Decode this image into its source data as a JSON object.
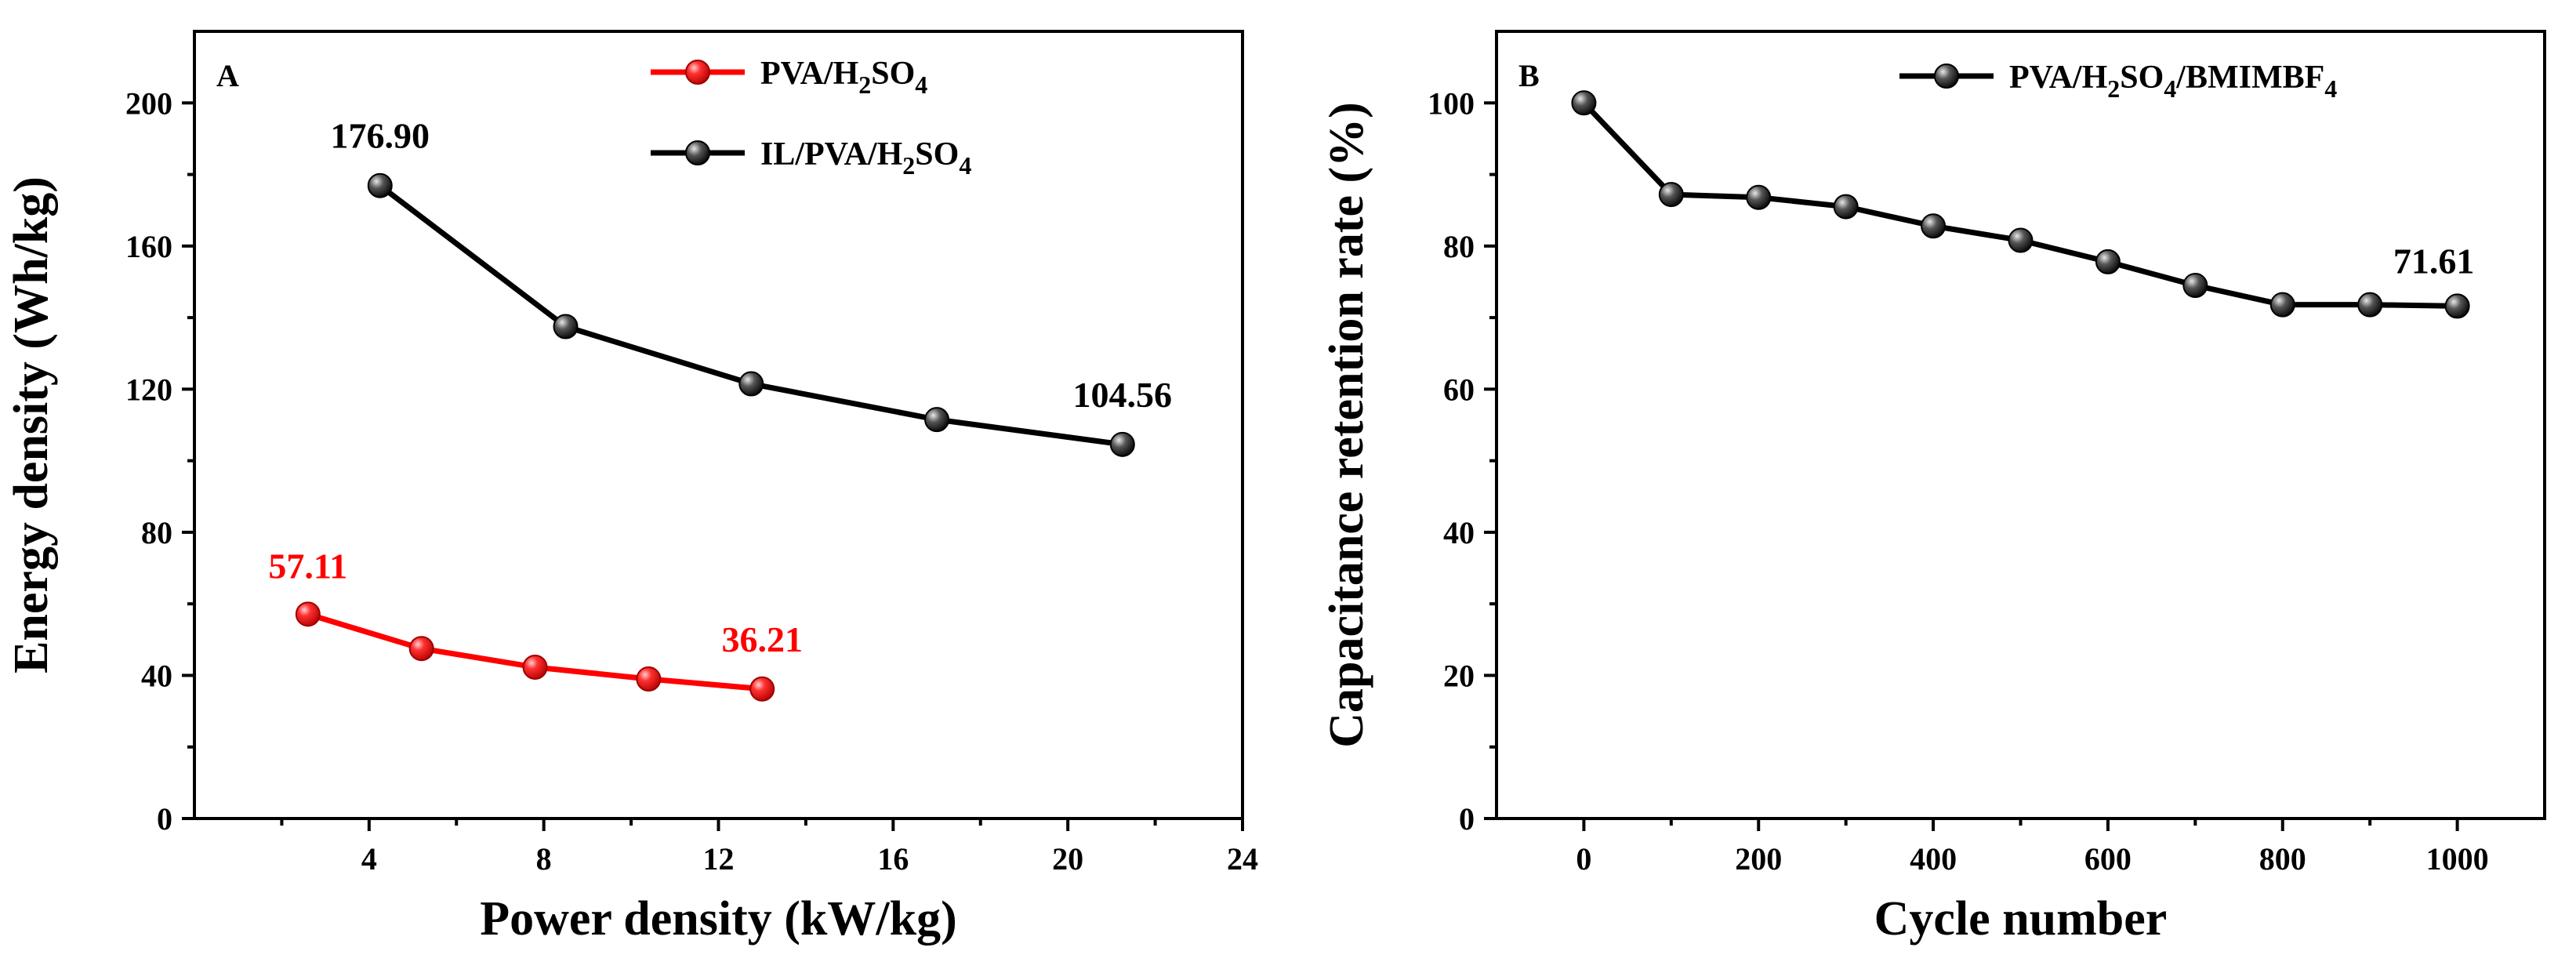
{
  "chart_data": [
    {
      "type": "line",
      "panel": "A",
      "xlabel": "Power density (kW/kg)",
      "ylabel": "Energy density (Wh/kg)",
      "xlim": [
        0,
        24
      ],
      "ylim": [
        0,
        220
      ],
      "xticks": [
        4,
        8,
        12,
        16,
        20,
        24
      ],
      "yticks": [
        0,
        40,
        80,
        120,
        160,
        200
      ],
      "grid": false,
      "legend_position": "top-right",
      "series": [
        {
          "name": "PVA/H2SO4",
          "legend": {
            "pre": "PVA/H",
            "sub1": "2",
            "mid": "SO",
            "sub2": "4",
            "post": ""
          },
          "color": "#ff0000",
          "x": [
            2.6,
            5.2,
            7.8,
            10.4,
            13.0
          ],
          "y": [
            57.11,
            47.5,
            42.3,
            39.0,
            36.21
          ]
        },
        {
          "name": "IL/PVA/H2SO4",
          "legend": {
            "pre": "IL/PVA/H",
            "sub1": "2",
            "mid": "SO",
            "sub2": "4",
            "post": ""
          },
          "color": "#000000",
          "x": [
            4.25,
            8.5,
            12.75,
            17.0,
            21.25
          ],
          "y": [
            176.9,
            137.5,
            121.5,
            111.5,
            104.56
          ]
        }
      ],
      "annotations": [
        {
          "text": "176.90",
          "x": 4.25,
          "y": 176.9,
          "color": "#000000"
        },
        {
          "text": "104.56",
          "x": 21.25,
          "y": 104.56,
          "color": "#000000"
        },
        {
          "text": "57.11",
          "x": 2.6,
          "y": 57.11,
          "color": "#ff0000"
        },
        {
          "text": "36.21",
          "x": 13.0,
          "y": 36.21,
          "color": "#ff0000"
        }
      ]
    },
    {
      "type": "line",
      "panel": "B",
      "xlabel": "Cycle number",
      "ylabel": "Capacitance retention rate (%)",
      "xlim": [
        -100,
        1100
      ],
      "ylim": [
        0,
        110
      ],
      "xticks": [
        0,
        200,
        400,
        600,
        800,
        1000
      ],
      "yticks": [
        0,
        20,
        40,
        60,
        80,
        100
      ],
      "grid": false,
      "legend_position": "top-right",
      "series": [
        {
          "name": "PVA/H2SO4/BMIMBF4",
          "legend": {
            "pre": "PVA/H",
            "sub1": "2",
            "mid": "SO",
            "sub2": "4",
            "post": "/BMIMBF",
            "sub3": "4"
          },
          "color": "#000000",
          "x": [
            0,
            100,
            200,
            300,
            400,
            500,
            600,
            700,
            800,
            900,
            1000
          ],
          "y": [
            100,
            87.2,
            86.8,
            85.5,
            82.8,
            80.8,
            77.8,
            74.5,
            71.8,
            71.8,
            71.61
          ]
        }
      ],
      "annotations": [
        {
          "text": "71.61",
          "x": 1000,
          "y": 71.61,
          "color": "#000000"
        }
      ]
    }
  ]
}
